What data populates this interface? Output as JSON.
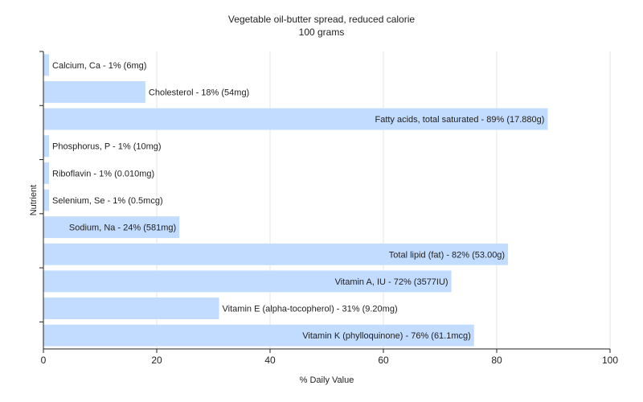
{
  "chart_data": {
    "type": "bar",
    "orientation": "horizontal",
    "title": "Vegetable oil-butter spread, reduced calorie",
    "subtitle": "100 grams",
    "xlabel": "% Daily Value",
    "ylabel": "Nutrient",
    "xlim": [
      0,
      100
    ],
    "xticks": [
      0,
      20,
      40,
      60,
      80,
      100
    ],
    "grid": true,
    "bar_color": "#c2dcff",
    "categories": [
      "Calcium, Ca",
      "Cholesterol",
      "Fatty acids, total saturated",
      "Phosphorus, P",
      "Riboflavin",
      "Selenium, Se",
      "Sodium, Na",
      "Total lipid (fat)",
      "Vitamin A, IU",
      "Vitamin E (alpha-tocopherol)",
      "Vitamin K (phylloquinone)"
    ],
    "values": [
      1,
      18,
      89,
      1,
      1,
      1,
      24,
      82,
      72,
      31,
      76
    ],
    "labels": [
      "Calcium, Ca - 1% (6mg)",
      "Cholesterol - 18% (54mg)",
      "Fatty acids, total saturated - 89% (17.880g)",
      "Phosphorus, P - 1% (10mg)",
      "Riboflavin - 1% (0.010mg)",
      "Selenium, Se - 1% (0.5mcg)",
      "Sodium, Na - 24% (581mg)",
      "Total lipid (fat) - 82% (53.00g)",
      "Vitamin A, IU - 72% (3577IU)",
      "Vitamin E (alpha-tocopherol) - 31% (9.20mg)",
      "Vitamin K (phylloquinone) - 76% (61.1mcg)"
    ]
  }
}
